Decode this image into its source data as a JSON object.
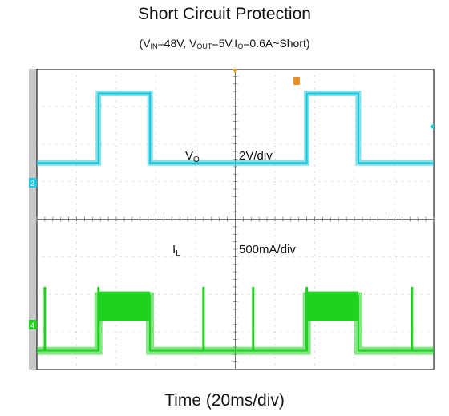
{
  "chart_data": {
    "type": "line",
    "title": "Short Circuit Protection",
    "subtitle": {
      "open": "(V",
      "vin_sub": "IN",
      "vin_val": "=48V, V",
      "vout_sub": "OUT",
      "vout_val": "=5V,I",
      "io_sub": "O",
      "io_val": "=0.6A~Short)"
    },
    "xlabel": "Time (20ms/div)",
    "divisions": {
      "x": 10,
      "y": 8
    },
    "channel_markers": [
      "2",
      "4"
    ],
    "series": [
      {
        "name": "VO",
        "name_main": "V",
        "name_sub": "O",
        "scale": "2V/div",
        "color": "#1ec8dc",
        "segments": [
          [
            0,
            1.0
          ],
          [
            1.55,
            1.0
          ],
          [
            1.55,
            2.85
          ],
          [
            2.85,
            2.85
          ],
          [
            2.85,
            1.0
          ],
          [
            6.8,
            1.0
          ],
          [
            6.8,
            2.85
          ],
          [
            8.1,
            2.85
          ],
          [
            8.1,
            1.0
          ],
          [
            10,
            1.0
          ]
        ]
      },
      {
        "name": "IL",
        "name_main": "I",
        "name_sub": "L",
        "scale": "500mA/div",
        "color": "#1fd21f",
        "segments": [
          [
            0,
            0.0
          ],
          [
            1.55,
            0.0
          ],
          [
            1.55,
            1.45
          ],
          [
            2.85,
            1.45
          ],
          [
            2.85,
            0.0
          ],
          [
            6.8,
            0.0
          ],
          [
            6.8,
            1.45
          ],
          [
            8.1,
            1.45
          ],
          [
            8.1,
            0.0
          ],
          [
            10,
            0.0
          ]
        ],
        "spikes": [
          0.2,
          1.55,
          4.2,
          5.45,
          6.8,
          9.45
        ],
        "spike_height": 1.7
      }
    ]
  }
}
